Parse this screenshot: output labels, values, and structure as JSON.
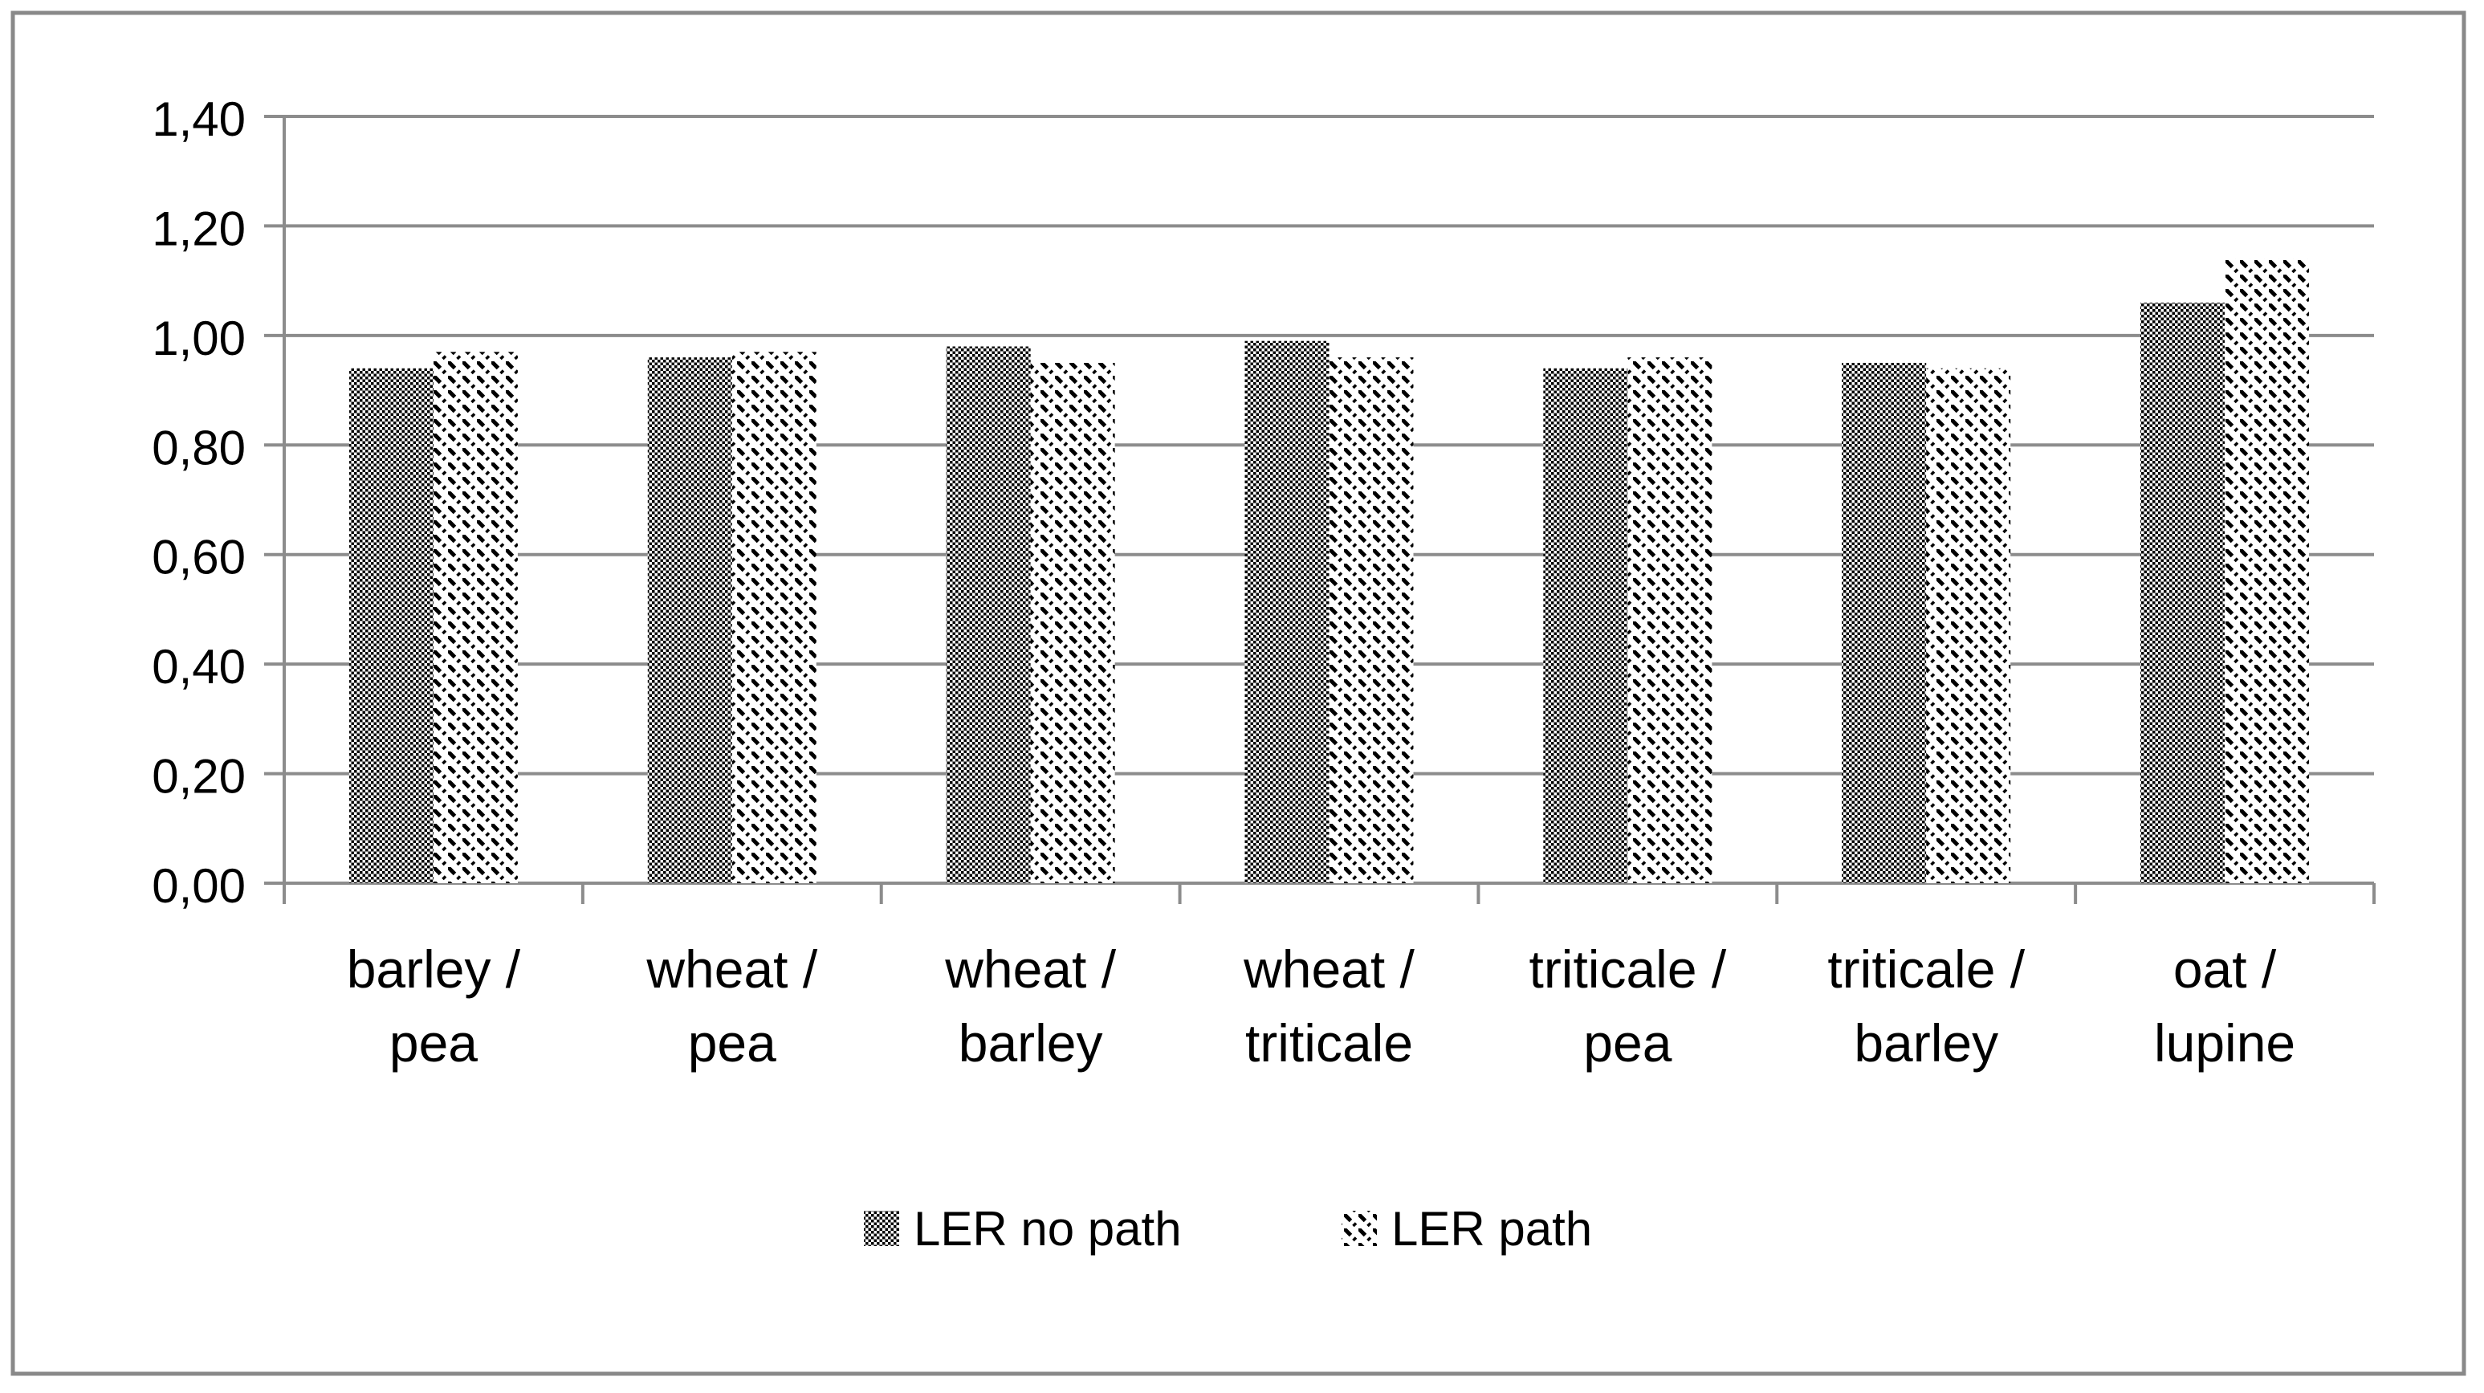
{
  "figure": {
    "background": "#FFFFFF",
    "frame_color": "#898989"
  },
  "chart_data": {
    "type": "bar",
    "title": "",
    "xlabel": "",
    "ylabel": "",
    "categories": [
      [
        "barley /",
        "pea"
      ],
      [
        "wheat /",
        "pea"
      ],
      [
        "wheat /",
        "barley"
      ],
      [
        "wheat /",
        "triticale"
      ],
      [
        "triticale /",
        "pea"
      ],
      [
        "triticale /",
        "barley"
      ],
      [
        "oat /",
        "lupine"
      ]
    ],
    "series": [
      {
        "name": "LER no path",
        "pattern": "checker-dots",
        "values": [
          0.94,
          0.96,
          0.98,
          0.99,
          0.94,
          0.95,
          1.06
        ]
      },
      {
        "name": "LER path",
        "pattern": "diagonal-hatch",
        "values": [
          0.97,
          0.97,
          0.95,
          0.96,
          0.96,
          0.94,
          1.14
        ]
      }
    ],
    "ylim": [
      0,
      1.4
    ],
    "ytick_step": 0.2,
    "ytick_labels": [
      "0,00",
      "0,20",
      "0,40",
      "0,60",
      "0,80",
      "1,00",
      "1,20",
      "1,40"
    ],
    "decimal_separator": ",",
    "grid": true,
    "legend_position": "bottom-center",
    "colors": {
      "grid": "#8C8C8C",
      "axis": "#8C8C8C",
      "text": "#000000",
      "pattern_foreground": "#000000",
      "pattern_background": "#FFFFFF"
    }
  }
}
